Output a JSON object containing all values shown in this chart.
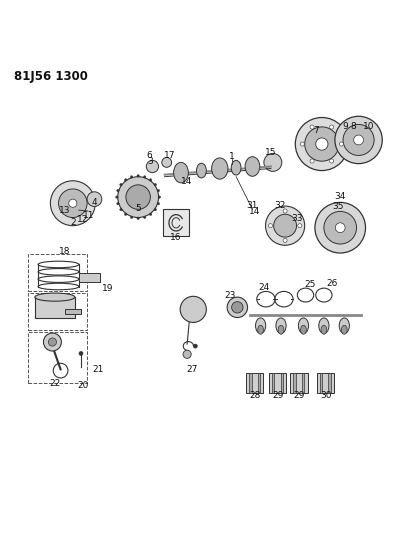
{
  "title_code": "81J56 1300",
  "bg_color": "#ffffff",
  "line_color": "#333333",
  "label_color": "#111111",
  "figsize": [
    4.11,
    5.33
  ],
  "dpi": 100
}
